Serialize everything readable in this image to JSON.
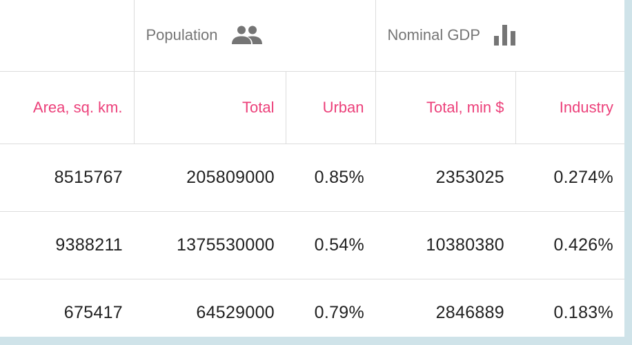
{
  "colors": {
    "accent": "#ec407a",
    "group_text": "#757575",
    "cell_text": "#212121",
    "border": "#dcdcdc",
    "frame": "#cfe3e9"
  },
  "groups": [
    {
      "label": "Population",
      "icon": "people-icon"
    },
    {
      "label": "Nominal GDP",
      "icon": "bar-chart-icon"
    }
  ],
  "columns": [
    "Area, sq. km.",
    "Total",
    "Urban",
    "Total, min $",
    "Industry"
  ],
  "rows": [
    [
      "8515767",
      "205809000",
      "0.85%",
      "2353025",
      "0.274%"
    ],
    [
      "9388211",
      "1375530000",
      "0.54%",
      "10380380",
      "0.426%"
    ],
    [
      "675417",
      "64529000",
      "0.79%",
      "2846889",
      "0.183%"
    ]
  ]
}
